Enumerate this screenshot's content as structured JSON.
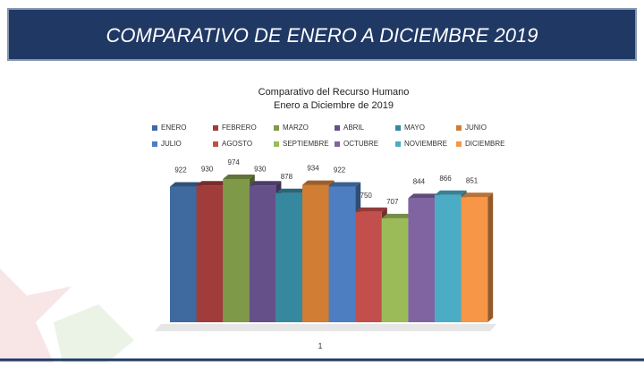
{
  "header": {
    "title": "COMPARATIVO DE ENERO A DICIEMBRE 2019"
  },
  "chart_data": {
    "type": "bar",
    "title": [
      "Comparativo del Recurso Humano",
      "Enero a Diciembre de 2019"
    ],
    "categories": [
      "1"
    ],
    "series": [
      {
        "name": "ENERO",
        "color": "#3f6aa0",
        "values": [
          922
        ]
      },
      {
        "name": "FEBRERO",
        "color": "#a03c3a",
        "values": [
          930
        ]
      },
      {
        "name": "MARZO",
        "color": "#7e9a48",
        "values": [
          974
        ]
      },
      {
        "name": "ABRIL",
        "color": "#65508a",
        "values": [
          930
        ]
      },
      {
        "name": "MAYO",
        "color": "#36889f",
        "values": [
          878
        ]
      },
      {
        "name": "JUNIO",
        "color": "#d17d34",
        "values": [
          934
        ]
      },
      {
        "name": "JULIO",
        "color": "#4d7ec2",
        "values": [
          922
        ]
      },
      {
        "name": "AGOSTO",
        "color": "#c24f4c",
        "values": [
          750
        ]
      },
      {
        "name": "SEPTIEMBRE",
        "color": "#9bbb59",
        "values": [
          707
        ]
      },
      {
        "name": "OCTUBRE",
        "color": "#8064a2",
        "values": [
          844
        ]
      },
      {
        "name": "NOVIEMBRE",
        "color": "#4bacc6",
        "values": [
          866
        ]
      },
      {
        "name": "DICIEMBRE",
        "color": "#f79646",
        "values": [
          851
        ]
      }
    ]
  }
}
